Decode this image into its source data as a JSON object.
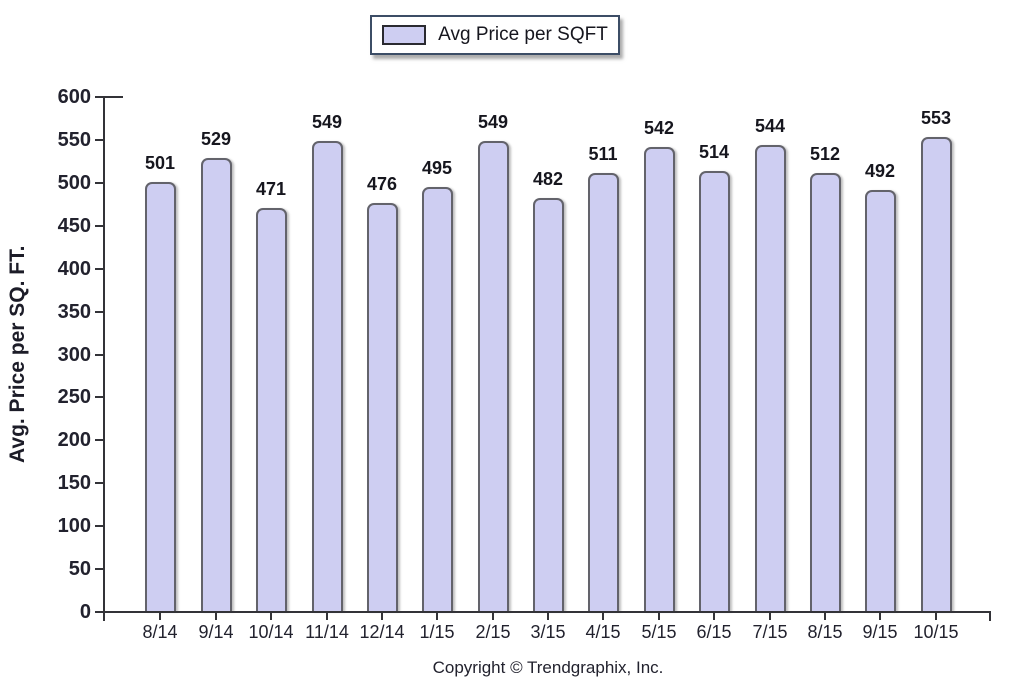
{
  "legend": {
    "label": "Avg Price per SQFT"
  },
  "y_axis_title": "Avg. Price per SQ. FT.",
  "footer": {
    "copyright": "Copyright © Trendgraphix, Inc."
  },
  "chart_data": {
    "type": "bar",
    "title": "",
    "xlabel": "",
    "ylabel": "Avg. Price per SQ. FT.",
    "categories": [
      "8/14",
      "9/14",
      "10/14",
      "11/14",
      "12/14",
      "1/15",
      "2/15",
      "3/15",
      "4/15",
      "5/15",
      "6/15",
      "7/15",
      "8/15",
      "9/15",
      "10/15"
    ],
    "values": [
      501,
      529,
      471,
      549,
      476,
      495,
      549,
      482,
      511,
      542,
      514,
      544,
      512,
      492,
      553
    ],
    "series": [
      {
        "name": "Avg Price per SQFT",
        "values": [
          501,
          529,
          471,
          549,
          476,
          495,
          549,
          482,
          511,
          542,
          514,
          544,
          512,
          492,
          553
        ]
      }
    ],
    "ylim": [
      0,
      600
    ],
    "ytick_step": 50,
    "yticks": [
      0,
      50,
      100,
      150,
      200,
      250,
      300,
      350,
      400,
      450,
      500,
      550,
      600
    ],
    "legend": [
      "Avg Price per SQFT"
    ],
    "legend_position": "top-center",
    "grid": false,
    "value_labels": true,
    "colors": {
      "bar_fill": "#cecef2",
      "bar_border": "#63636b",
      "axis": "#333338",
      "text": "#22222e",
      "legend_border": "#3c4d66"
    }
  }
}
